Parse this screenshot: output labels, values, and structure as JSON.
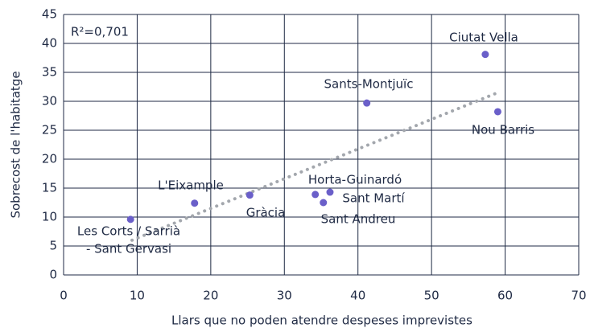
{
  "chart_data": {
    "type": "scatter",
    "x_label": "Llars que no poden atendre despeses imprevistes",
    "y_label": "Sobrecost de l'habitatge",
    "annotation": "R²=0,701",
    "x": [
      9.1,
      17.8,
      25.3,
      34.2,
      36.2,
      35.3,
      41.2,
      57.3,
      59.0
    ],
    "values": [
      9.6,
      12.4,
      13.8,
      13.9,
      14.3,
      12.5,
      29.7,
      38.1,
      28.2
    ],
    "labels": [
      [
        "Les Corts / Sarrià",
        "- Sant Gervasi"
      ],
      [
        "L'Eixample"
      ],
      [
        "Gràcia"
      ],
      [
        "Horta-Guinardó"
      ],
      [
        "Sant Martí"
      ],
      [
        "Sant Andreu"
      ],
      [
        "Sants-Montjuïc"
      ],
      [
        "Ciutat Vella"
      ],
      [
        "Nou Barris"
      ]
    ],
    "color": "#6a5fc9",
    "trendline": {
      "x": [
        9.3,
        59.0
      ],
      "y": [
        6.0,
        31.5
      ],
      "color": "#a3a7ad"
    },
    "xlim": [
      0,
      70
    ],
    "xticks": [
      0,
      10,
      20,
      30,
      40,
      50,
      60,
      70
    ],
    "ylim": [
      0,
      45
    ],
    "yticks": [
      0,
      5,
      10,
      15,
      20,
      25,
      30,
      35,
      40,
      45
    ],
    "grid": true
  }
}
